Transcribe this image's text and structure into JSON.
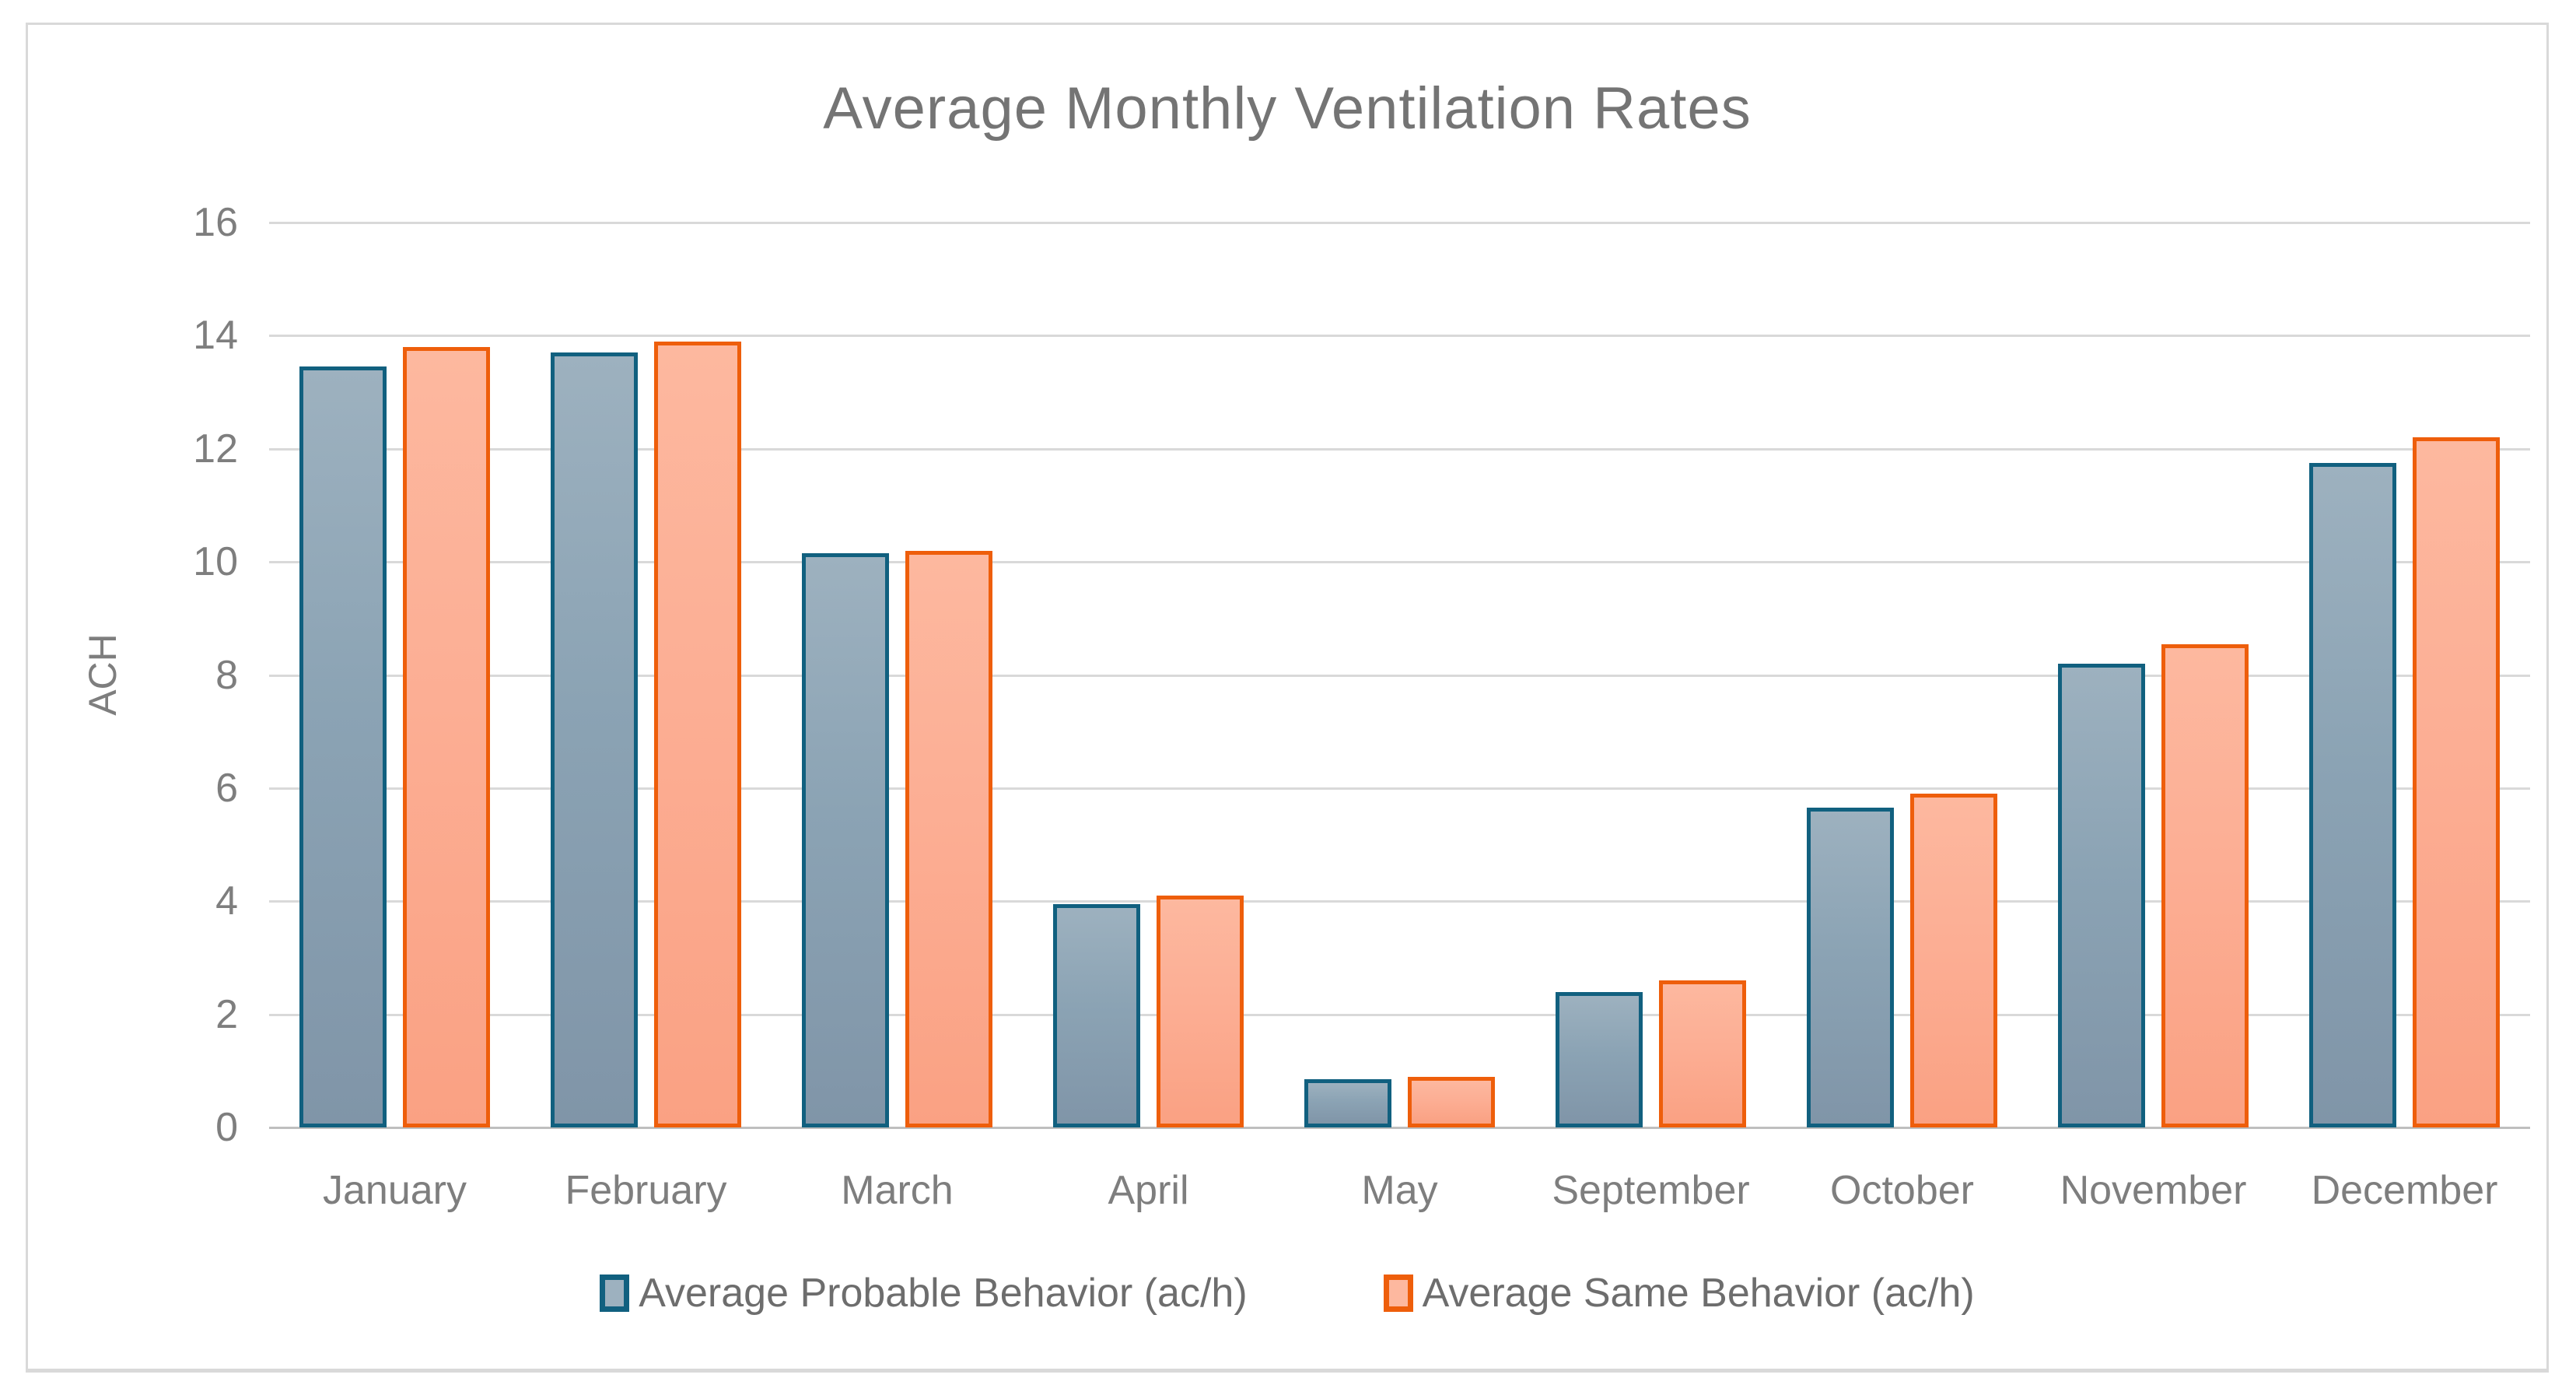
{
  "chart_data": {
    "type": "bar",
    "title": "Average Monthly Ventilation Rates",
    "xlabel": "",
    "ylabel": "ACH",
    "ylim": [
      0,
      16
    ],
    "ytick_step": 2,
    "yticks": [
      0,
      2,
      4,
      6,
      8,
      10,
      12,
      14,
      16
    ],
    "grid": true,
    "legend_position": "bottom",
    "categories": [
      "January",
      "February",
      "March",
      "April",
      "May",
      "September",
      "October",
      "November",
      "December"
    ],
    "series": [
      {
        "name": "Average Probable Behavior (ac/h)",
        "key": "probable",
        "values": [
          13.45,
          13.7,
          10.15,
          3.95,
          0.85,
          2.4,
          5.65,
          8.2,
          11.75
        ],
        "fill": "#8ba3b4",
        "fill_light": "#9db1bf",
        "fill_dark": "#8095a8",
        "border": "#11607f"
      },
      {
        "name": "Average Same Behavior (ac/h)",
        "key": "same",
        "values": [
          13.8,
          13.9,
          10.2,
          4.1,
          0.9,
          2.6,
          5.9,
          8.55,
          12.2
        ],
        "fill": "#fcae94",
        "fill_light": "#fdb89f",
        "fill_dark": "#faa183",
        "border": "#ee5e0b"
      }
    ],
    "colors": {
      "background": "#ffffff",
      "frame_border": "#d9d9d9",
      "gridline": "#d9d9d9",
      "axis_line": "#bfbfbf",
      "title_text": "#747474",
      "axis_text": "#7e7e7e",
      "legend_text": "#6d6d6d"
    }
  }
}
